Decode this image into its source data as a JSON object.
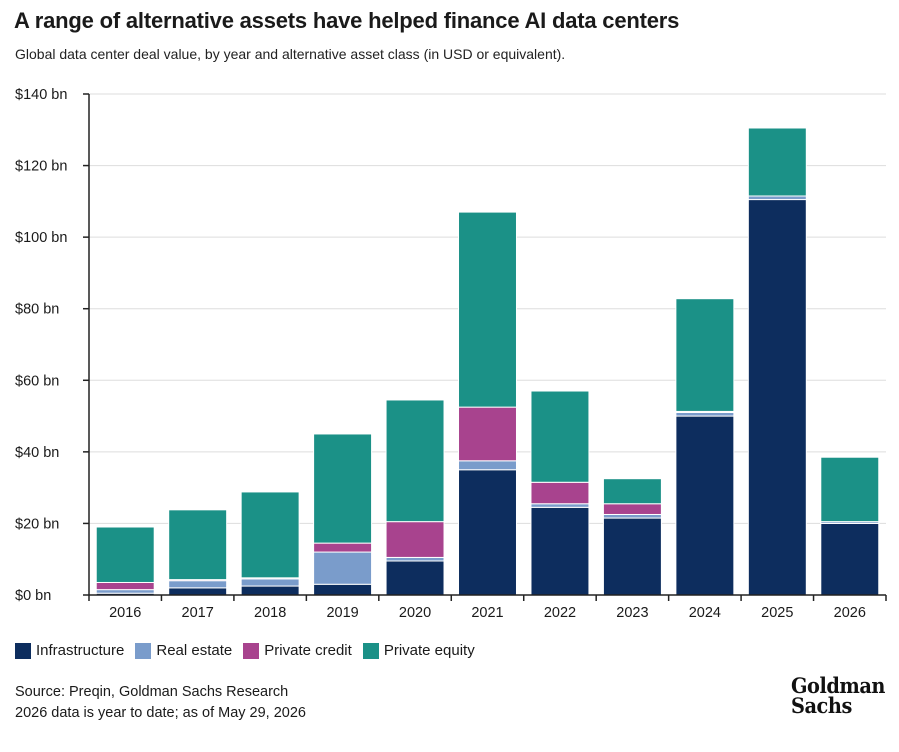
{
  "title": "A range of alternative assets have helped finance AI data centers",
  "subtitle": "Global data center deal value, by year and alternative asset class (in USD or equivalent).",
  "source_line1": "Source: Preqin, Goldman Sachs Research",
  "source_line2": "2026 data is year to date; as of May 29, 2026",
  "logo_line1": "Goldman",
  "logo_line2": "Sachs",
  "colors": {
    "infrastructure": "#0d2d5e",
    "real_estate": "#7a9ccb",
    "private_credit": "#a8438e",
    "private_equity": "#1b9187",
    "grid": "#dddddd",
    "axis": "#222222"
  },
  "chart_data": {
    "type": "bar",
    "stacked": true,
    "title": "A range of alternative assets have helped finance AI data centers",
    "subtitle": "Global data center deal value, by year and alternative asset class (in USD or equivalent).",
    "xlabel": "",
    "ylabel": "",
    "ylim": [
      0,
      140
    ],
    "yticks": [
      0,
      20,
      40,
      60,
      80,
      100,
      120,
      140
    ],
    "ytick_labels": [
      "$0 bn",
      "$20 bn",
      "$40 bn",
      "$60 bn",
      "$80 bn",
      "$100 bn",
      "$120 bn",
      "$140 bn"
    ],
    "grid": true,
    "legend_position": "bottom-left",
    "categories": [
      "2016",
      "2017",
      "2018",
      "2019",
      "2020",
      "2021",
      "2022",
      "2023",
      "2024",
      "2025",
      "2026"
    ],
    "series": [
      {
        "name": "Infrastructure",
        "color_key": "infrastructure",
        "values": [
          0.5,
          2,
          2.5,
          3,
          9.5,
          35,
          24.5,
          21.5,
          50,
          110.5,
          20
        ]
      },
      {
        "name": "Real estate",
        "color_key": "real_estate",
        "values": [
          1,
          2,
          2,
          9,
          1,
          2.5,
          1,
          1,
          1,
          1,
          0.5
        ]
      },
      {
        "name": "Private credit",
        "color_key": "private_credit",
        "values": [
          2,
          0.3,
          0.3,
          2.5,
          10,
          15,
          6,
          3,
          0.3,
          0,
          0
        ]
      },
      {
        "name": "Private equity",
        "color_key": "private_equity",
        "values": [
          15.5,
          19.5,
          24,
          30.5,
          34,
          54.5,
          25.5,
          7,
          31.5,
          19,
          18
        ]
      }
    ]
  }
}
